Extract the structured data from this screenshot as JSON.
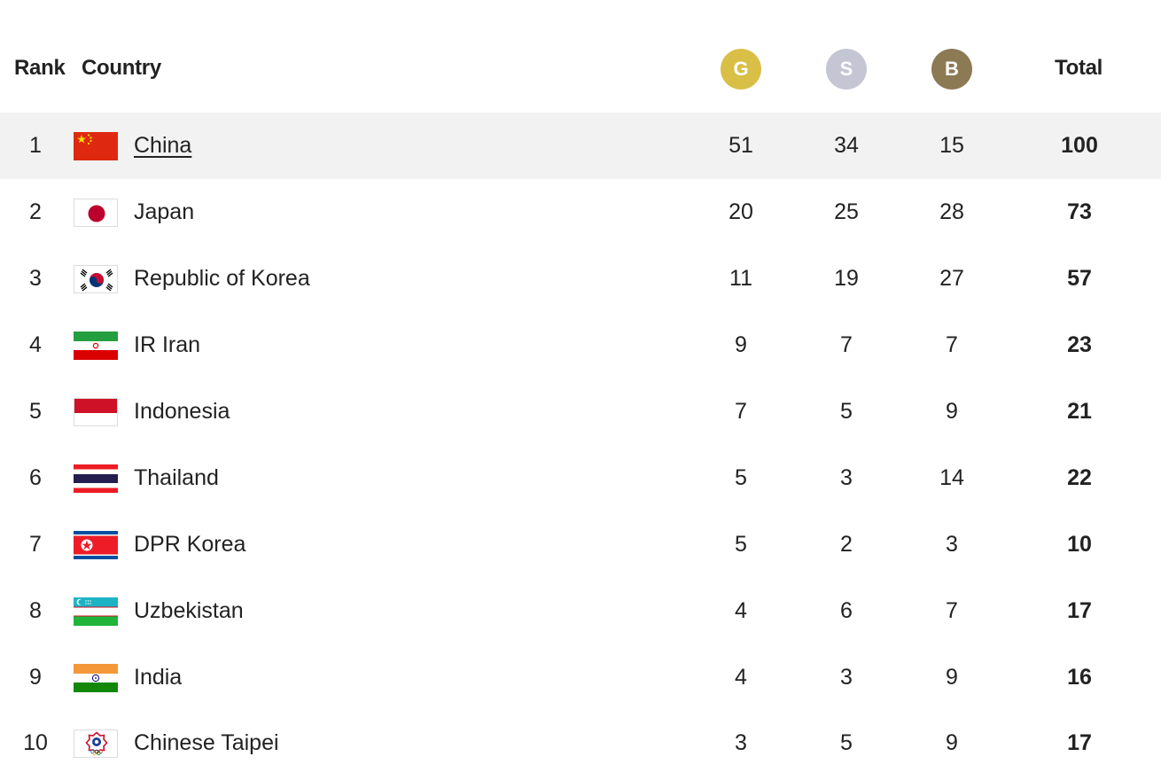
{
  "header": {
    "rank_label": "Rank",
    "country_label": "Country",
    "gold_label": "G",
    "silver_label": "S",
    "bronze_label": "B",
    "total_label": "Total"
  },
  "colors": {
    "gold": "#d9bf46",
    "silver": "#c5c6d4",
    "bronze": "#8c7a55",
    "highlight_row": "#f2f2f2"
  },
  "rows": [
    {
      "rank": "1",
      "country": "China",
      "flag": "china-flag",
      "gold": "51",
      "silver": "34",
      "bronze": "15",
      "total": "100"
    },
    {
      "rank": "2",
      "country": "Japan",
      "flag": "japan-flag",
      "gold": "20",
      "silver": "25",
      "bronze": "28",
      "total": "73"
    },
    {
      "rank": "3",
      "country": "Republic of Korea",
      "flag": "korea-flag",
      "gold": "11",
      "silver": "19",
      "bronze": "27",
      "total": "57"
    },
    {
      "rank": "4",
      "country": "IR Iran",
      "flag": "iran-flag",
      "gold": "9",
      "silver": "7",
      "bronze": "7",
      "total": "23"
    },
    {
      "rank": "5",
      "country": "Indonesia",
      "flag": "indonesia-flag",
      "gold": "7",
      "silver": "5",
      "bronze": "9",
      "total": "21"
    },
    {
      "rank": "6",
      "country": "Thailand",
      "flag": "thailand-flag",
      "gold": "5",
      "silver": "3",
      "bronze": "14",
      "total": "22"
    },
    {
      "rank": "7",
      "country": "DPR Korea",
      "flag": "dpr-korea-flag",
      "gold": "5",
      "silver": "2",
      "bronze": "3",
      "total": "10"
    },
    {
      "rank": "8",
      "country": "Uzbekistan",
      "flag": "uzbekistan-flag",
      "gold": "4",
      "silver": "6",
      "bronze": "7",
      "total": "17"
    },
    {
      "rank": "9",
      "country": "India",
      "flag": "india-flag",
      "gold": "4",
      "silver": "3",
      "bronze": "9",
      "total": "16"
    },
    {
      "rank": "10",
      "country": "Chinese Taipei",
      "flag": "chinese-taipei-flag",
      "gold": "3",
      "silver": "5",
      "bronze": "9",
      "total": "17"
    }
  ]
}
